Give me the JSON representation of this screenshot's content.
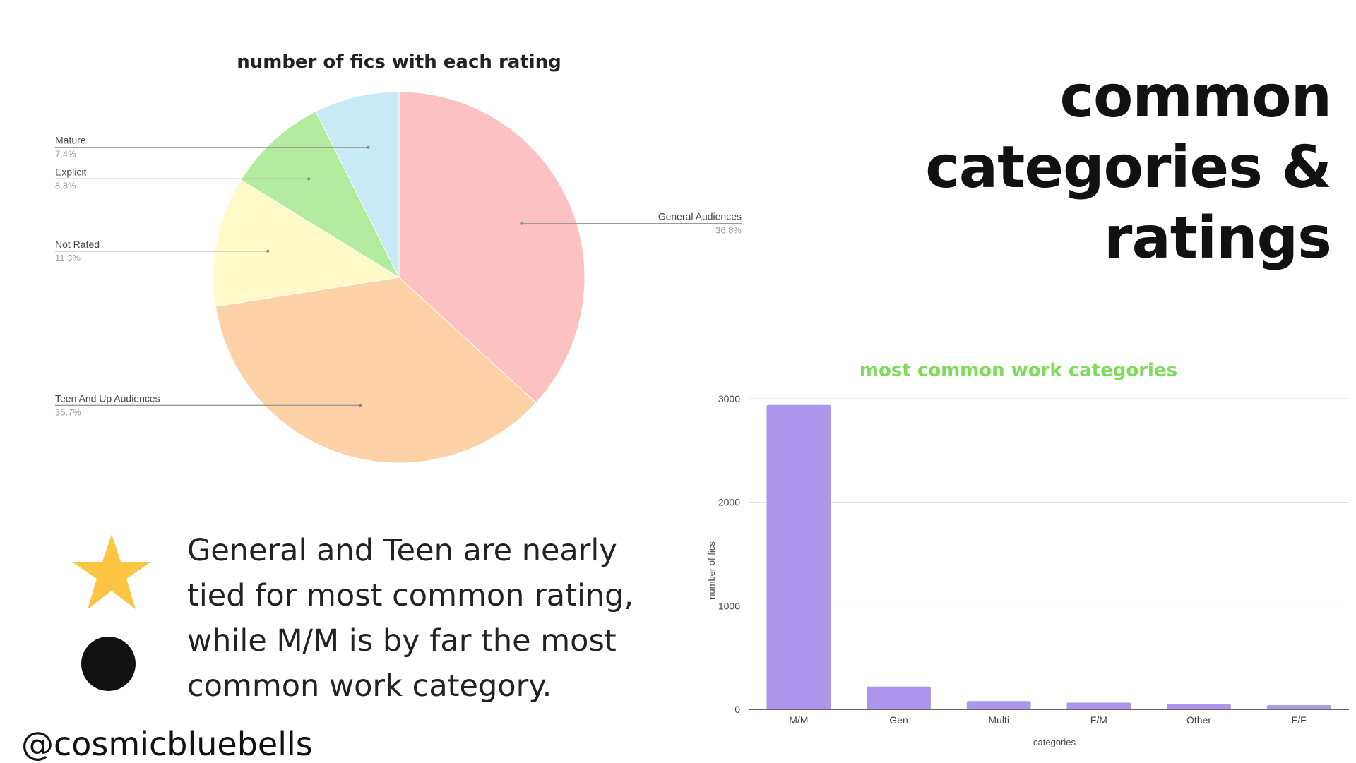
{
  "heading": {
    "line1": "common",
    "line2": "categories &",
    "line3": "ratings"
  },
  "note": "General and Teen are nearly tied for most common rating, while M/M is by far the most common work category.",
  "handle": "@cosmicbluebells",
  "icons": [
    "star-icon",
    "circle-icon"
  ],
  "colors": {
    "star": "#fcc542",
    "dot": "#111111",
    "bar": "#ab96ec",
    "bar_title": "#7ddc5a"
  },
  "chart_data": [
    {
      "type": "pie",
      "title": "number of fics with each rating",
      "slices": [
        {
          "label": "General Audiences",
          "percent": 36.8,
          "display": "36.8%",
          "color": "#fec1c2"
        },
        {
          "label": "Teen And Up Audiences",
          "percent": 35.7,
          "display": "35.7%",
          "color": "#fed1a7"
        },
        {
          "label": "Not Rated",
          "percent": 11.3,
          "display": "11.3%",
          "color": "#fffac7"
        },
        {
          "label": "Explicit",
          "percent": 8.8,
          "display": "8.8%",
          "color": "#b4ec9f"
        },
        {
          "label": "Mature",
          "percent": 7.4,
          "display": "7.4%",
          "color": "#c8eaf6"
        }
      ],
      "start": "top, clockwise"
    },
    {
      "type": "bar",
      "title": "most common work categories",
      "categories": [
        "M/M",
        "Gen",
        "Multi",
        "F/M",
        "Other",
        "F/F"
      ],
      "values": [
        2940,
        220,
        80,
        65,
        50,
        40
      ],
      "xlabel": "categories",
      "ylabel": "number of fics",
      "ylim": [
        0,
        3000
      ],
      "yticks": [
        "0",
        "1000",
        "2000",
        "3000"
      ],
      "grid": true,
      "color": "#ab96ec"
    }
  ]
}
